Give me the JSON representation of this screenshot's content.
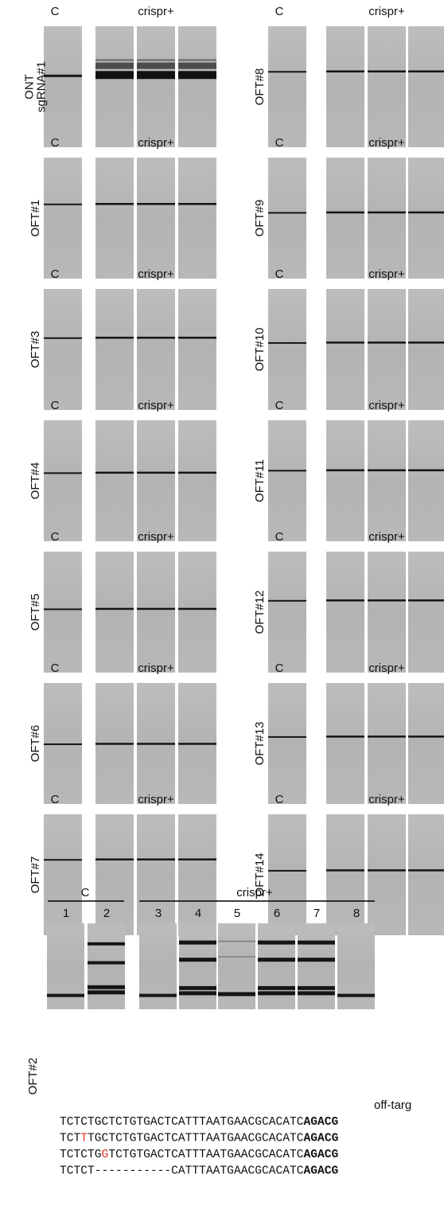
{
  "panels": [
    {
      "label": [
        "ONT",
        "sgRNA#1"
      ],
      "control": "C",
      "treated": "crispr+"
    },
    {
      "label": [
        "OFT#1"
      ],
      "control": "C",
      "treated": "crispr+"
    },
    {
      "label": [
        "OFT#3"
      ],
      "control": "C",
      "treated": "crispr+"
    },
    {
      "label": [
        "OFT#4"
      ],
      "control": "C",
      "treated": "crispr+"
    },
    {
      "label": [
        "OFT#5"
      ],
      "control": "C",
      "treated": "crispr+"
    },
    {
      "label": [
        "OFT#6"
      ],
      "control": "C",
      "treated": "crispr+"
    },
    {
      "label": [
        "OFT#7"
      ],
      "control": "C",
      "treated": "crispr+"
    },
    {
      "label": [
        "OFT#8"
      ],
      "control": "C",
      "treated": "crispr+"
    },
    {
      "label": [
        "OFT#9"
      ],
      "control": "C",
      "treated": "crispr+"
    },
    {
      "label": [
        "OFT#10"
      ],
      "control": "C",
      "treated": "crispr+"
    },
    {
      "label": [
        "OFT#11"
      ],
      "control": "C",
      "treated": "crispr+"
    },
    {
      "label": [
        "OFT#12"
      ],
      "control": "C",
      "treated": "crispr+"
    },
    {
      "label": [
        "OFT#13"
      ],
      "control": "C",
      "treated": "crispr+"
    },
    {
      "label": [
        "OFT#14"
      ],
      "control": "C",
      "treated": "crispr+"
    }
  ],
  "bottom": {
    "label": "OFT#2",
    "control": "C",
    "treated": "crispr+",
    "lanes": [
      "1",
      "2",
      "3",
      "4",
      "5",
      "6",
      "7",
      "8"
    ],
    "caption": "off-targ",
    "sequences": [
      {
        "parts": [
          {
            "text": "TCTCTGCTCTGTGACTCATTTAATGAACGCACATC",
            "mutation": false
          }
        ],
        "target": "AGACG"
      },
      {
        "parts": [
          {
            "text": "TCT",
            "mutation": false
          },
          {
            "text": "T",
            "mutation": true
          },
          {
            "text": "TGCTCTGTGACTCATTTAATGAACGCACATC",
            "mutation": false
          }
        ],
        "target": "AGACG"
      },
      {
        "parts": [
          {
            "text": "TCTCTG",
            "mutation": false
          },
          {
            "text": "G",
            "mutation": true
          },
          {
            "text": "TCTGTGACTCATTTAATGAACGCACATC",
            "mutation": false
          }
        ],
        "target": "AGACG"
      },
      {
        "parts": [
          {
            "text": "TCTCT-----------CATTTAATGAACGCACATC",
            "mutation": false
          }
        ],
        "target": "AGACG"
      }
    ]
  }
}
